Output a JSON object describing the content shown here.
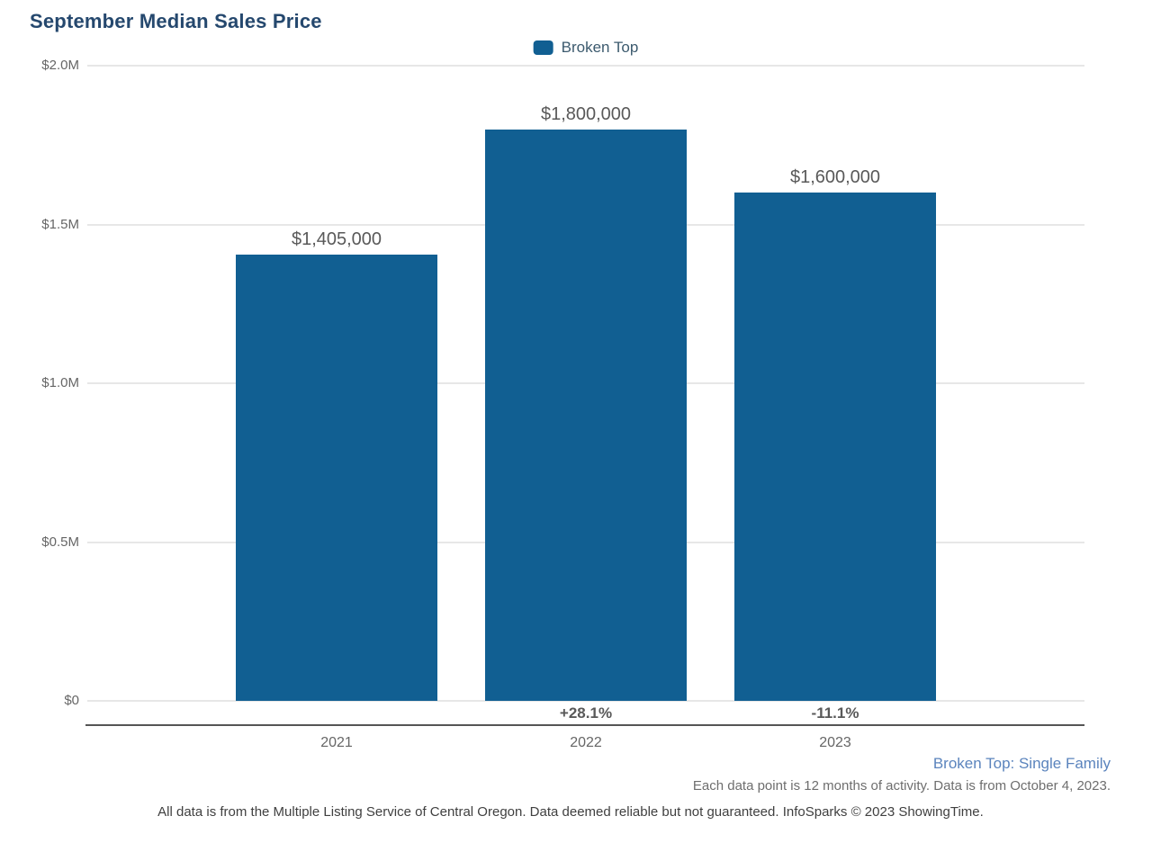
{
  "title": "September Median Sales Price",
  "legend": {
    "label": "Broken Top",
    "swatch_color": "#115F92"
  },
  "chart_data": {
    "type": "bar",
    "title": "September Median Sales Price",
    "categories": [
      "2021",
      "2022",
      "2023"
    ],
    "series": [
      {
        "name": "Broken Top",
        "values": [
          1405000,
          1800000,
          1600000
        ]
      }
    ],
    "value_labels": [
      "$1,405,000",
      "$1,800,000",
      "$1,600,000"
    ],
    "pct_change_labels": [
      "",
      "+28.1%",
      "-11.1%"
    ],
    "y_ticks": [
      "$2.0M",
      "$1.5M",
      "$1.0M",
      "$0.5M",
      "$0"
    ],
    "y_tick_values": [
      2000000,
      1500000,
      1000000,
      500000,
      0
    ],
    "ylim": [
      0,
      2000000
    ],
    "xlabel": "",
    "ylabel": "",
    "bar_color": "#115F92",
    "grid": true,
    "legend_position": "top-center"
  },
  "footer": {
    "series_note": "Broken Top: Single Family",
    "data_note": "Each data point is 12 months of activity. Data is from October 4, 2023.",
    "disclaimer": "All data is from the Multiple Listing Service of Central Oregon. Data deemed reliable but not guaranteed. InfoSparks © 2023 ShowingTime."
  }
}
